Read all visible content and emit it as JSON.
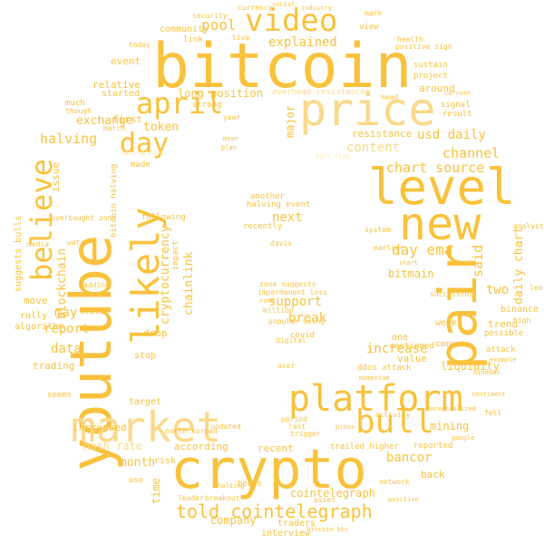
{
  "palette": {
    "background": "#ffffff",
    "primary": "#F9C23C",
    "light": "#FAD98A",
    "pale": "#FDEBC0"
  },
  "words": {
    "bitcoin": "bitcoin",
    "crypto": "crypto",
    "price": "price",
    "level": "level",
    "new": "new",
    "youtube": "youtube",
    "pair": "pair",
    "market": "market",
    "platform": "platform",
    "likely": "likely",
    "believe": "believe",
    "video": "video",
    "april": "april",
    "bull": "bull",
    "day": "day",
    "told_cointelegraph": "told cointelegraph",
    "explained": "explained",
    "pool": "pool",
    "long_position": "long position",
    "token": "token",
    "halving": "halving",
    "exchange": "exchange",
    "usd_daily": "usd daily",
    "channel": "channel",
    "chart_source": "chart source",
    "content": "content",
    "day_ema": "day ema",
    "said": "said",
    "two": "two",
    "daily_chart": "daily chart",
    "support": "support",
    "break": "break",
    "next": "next",
    "may": "may",
    "report": "report",
    "data": "data",
    "increase": "increase",
    "bancor": "bancor",
    "cointelegraph": "cointelegraph",
    "month": "month",
    "company": "company",
    "hash_rate": "hash rate",
    "blockchain": "blockchain",
    "cryptocurrency": "cryptocurrency",
    "chainlink": "chainlink",
    "time": "time",
    "bitmain": "bitmain",
    "mining": "mining",
    "liquidity": "liquidity",
    "value": "value",
    "around": "around",
    "resistance": "resistance",
    "major": "major",
    "first": "first",
    "community": "community",
    "event": "event",
    "relative": "relative",
    "started": "started",
    "issue": "issue",
    "move": "move",
    "rally": "rally",
    "algorithm": "algorithm",
    "trading": "trading",
    "seems": "seems",
    "increased": "increased",
    "target": "target",
    "according": "according",
    "recent": "recent",
    "interview": "interview",
    "traders": "traders",
    "leader": "leader",
    "breakout": "breakout",
    "reported": "reported",
    "back": "back",
    "network": "network",
    "trend": "trend",
    "binance": "binance",
    "week": "week",
    "come": "come",
    "one": "one",
    "mentioned": "mentioned",
    "ddos_attack": "ddos attack",
    "attack": "attack",
    "possible": "possible",
    "covid": "covid",
    "recently": "recently",
    "another": "another",
    "halving_event": "halving event",
    "zone_suggests": "zone suggests",
    "impermanent_loss": "impermanent loss",
    "suggests_bulls": "suggests bulls",
    "drop": "drop",
    "stop": "stop",
    "following": "following",
    "impact": "impact",
    "bitcoin_halving": "bitcoin halving",
    "made": "made",
    "still": "still",
    "adding": "adding",
    "watch": "watch",
    "overbought_zone": "overbought zone",
    "signal": "signal",
    "result": "result",
    "project": "project",
    "sustain": "sustain",
    "view": "view",
    "health": "health",
    "positive_sign": "positive sign",
    "mark": "mark",
    "strong": "strong",
    "year": "year",
    "security": "security",
    "currency": "currency",
    "today": "today",
    "link": "link",
    "live": "live",
    "much": "much",
    "though": "though",
    "march": "march",
    "system": "system",
    "earlier": "earlier",
    "start": "start",
    "successful": "successful",
    "leo": "leo",
    "analyst": "analyst",
    "high": "high",
    "mining_pools": "mining pools",
    "period": "period",
    "last": "last",
    "trigger": "trigger",
    "asset": "asset",
    "bitcoin_btc": "bitcoin btc",
    "user": "user",
    "updated": "updated",
    "north_korean": "north korean",
    "risk": "risk",
    "use": "use",
    "davis": "davis",
    "popular": "popular",
    "using": "using",
    "digital": "digital",
    "million": "million",
    "bears": "bears",
    "rate": "rate",
    "trailed_higher": "trailed higher",
    "activity": "activity",
    "momentum": "momentum",
    "media": "media",
    "mean": "mean",
    "overhead_resistance": "overhead resistance",
    "head": "head",
    "current": "current",
    "google": "google",
    "sentiment": "sentiment",
    "example": "example",
    "hindman": "hindman",
    "fell": "fell",
    "positive": "positive",
    "sign": "sign",
    "decentralized": "decentralized",
    "pinos": "pinos",
    "holding": "holding",
    "plan": "plan",
    "industry": "industry",
    "social": "social",
    "bull_flag": "bull flag"
  }
}
